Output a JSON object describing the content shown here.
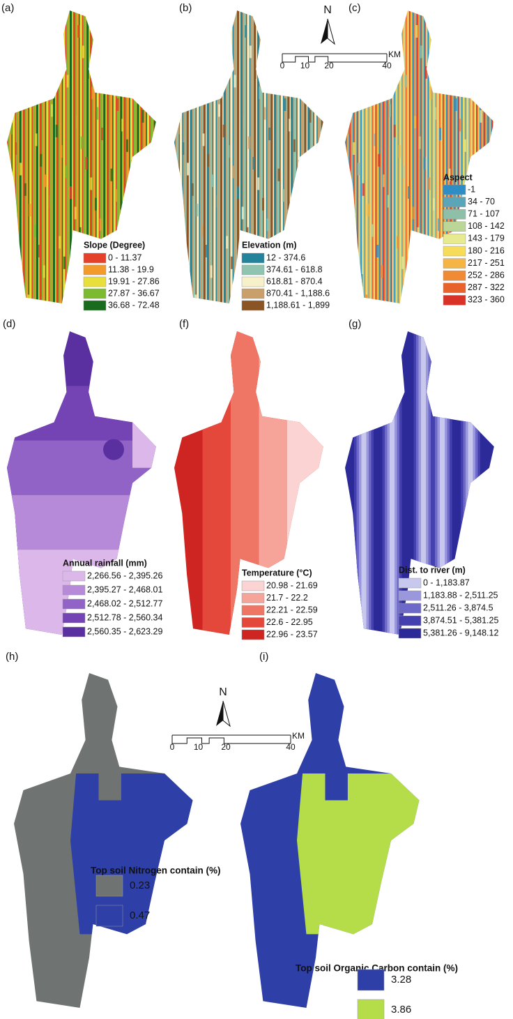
{
  "figure": {
    "panels": [
      {
        "label": "(a)",
        "legend_title": "Slope (Degree)",
        "items": [
          {
            "label": "0 - 11.37",
            "color": "#e5402a"
          },
          {
            "label": "11.38 - 19.9",
            "color": "#f39a2c"
          },
          {
            "label": "19.91 - 27.86",
            "color": "#e9df3a"
          },
          {
            "label": "27.87 - 36.67",
            "color": "#7cba2f"
          },
          {
            "label": "36.68 - 72.48",
            "color": "#196b1e"
          }
        ]
      },
      {
        "label": "(b)",
        "legend_title": "Elevation (m)",
        "items": [
          {
            "label": "12 - 374.6",
            "color": "#23839a"
          },
          {
            "label": "374.61 - 618.8",
            "color": "#8fc4b0"
          },
          {
            "label": "618.81 - 870.4",
            "color": "#f6f1c9"
          },
          {
            "label": "870.41 - 1,188.6",
            "color": "#caa06a"
          },
          {
            "label": "1,188.61 - 1,899",
            "color": "#8a5424"
          }
        ]
      },
      {
        "label": "(c)",
        "legend_title": "Aspect",
        "items": [
          {
            "label": "-1",
            "color": "#2e8dc4"
          },
          {
            "label": "34 - 70",
            "color": "#5aa6b8"
          },
          {
            "label": "71 - 107",
            "color": "#8ebfa8"
          },
          {
            "label": "108 - 142",
            "color": "#bcd698"
          },
          {
            "label": "143 - 179",
            "color": "#e7ea8e"
          },
          {
            "label": "180 - 216",
            "color": "#f7dc5a"
          },
          {
            "label": "217 - 251",
            "color": "#f6b444"
          },
          {
            "label": "252 - 286",
            "color": "#f08a35"
          },
          {
            "label": "287 - 322",
            "color": "#e8632b"
          },
          {
            "label": "323 - 360",
            "color": "#d93226"
          }
        ]
      },
      {
        "label": "(d)",
        "legend_title": "Annual rainfall (mm)",
        "items": [
          {
            "label": "2,266.56 - 2,395.26",
            "color": "#dcb7ea"
          },
          {
            "label": "2,395.27 - 2,468.01",
            "color": "#b68ad8"
          },
          {
            "label": "2,468.02 - 2,512.77",
            "color": "#9163c6"
          },
          {
            "label": "2,512.78 - 2,560.34",
            "color": "#7443b4"
          },
          {
            "label": "2,560.35 - 2,623.29",
            "color": "#5a2fa0"
          }
        ]
      },
      {
        "label": "(f)",
        "legend_title": "Temperature (°C)",
        "items": [
          {
            "label": "20.98 - 21.69",
            "color": "#fbd3d3"
          },
          {
            "label": "21.7 - 22.2",
            "color": "#f6a39a"
          },
          {
            "label": "22.21 - 22.59",
            "color": "#ef7564"
          },
          {
            "label": "22.6 - 22.95",
            "color": "#e4483a"
          },
          {
            "label": "22.96 - 23.57",
            "color": "#cf2522"
          }
        ]
      },
      {
        "label": "(g)",
        "legend_title": "Dist. to river (m)",
        "items": [
          {
            "label": "0 - 1,183.87",
            "color": "#c8c8ee"
          },
          {
            "label": "1,183.88 - 2,511.25",
            "color": "#9a97dd"
          },
          {
            "label": "2,511.26 - 3,874.5",
            "color": "#6d69c8"
          },
          {
            "label": "3,874.51 - 5,381.25",
            "color": "#4440b0"
          },
          {
            "label": "5,381.26 - 9,148.12",
            "color": "#2c2a98"
          }
        ]
      },
      {
        "label": "(h)",
        "legend_title": "Top soil Nitrogen contain (%)",
        "items": [
          {
            "label": "0.23",
            "color": "#6f7472"
          },
          {
            "label": "0.47",
            "color": "#2e3fa8"
          }
        ]
      },
      {
        "label": "(i)",
        "legend_title": "Top soil Organic Carbon contain (%)",
        "items": [
          {
            "label": "3.28",
            "color": "#2e3fa8"
          },
          {
            "label": "3.86",
            "color": "#b5dd4a"
          }
        ]
      }
    ],
    "scale_bars": [
      {
        "north": "N",
        "ticks": [
          "0",
          "10",
          "20",
          "40"
        ],
        "unit": "KM"
      },
      {
        "north": "N",
        "ticks": [
          "0",
          "10",
          "20",
          "40"
        ],
        "unit": "KM"
      }
    ]
  }
}
